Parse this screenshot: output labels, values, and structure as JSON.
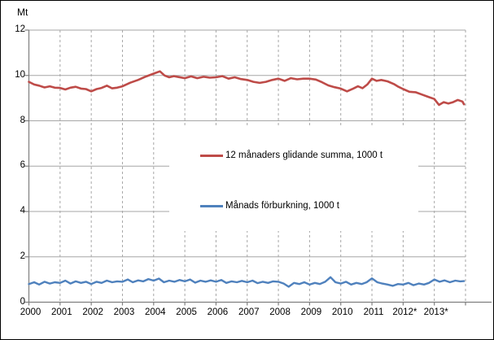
{
  "chart_data": {
    "type": "line",
    "title": "",
    "y_axis": {
      "label": "Mt",
      "min": 0,
      "max": 12,
      "ticks": [
        0,
        2,
        4,
        6,
        8,
        10,
        12
      ]
    },
    "x_axis": {
      "labels": [
        "2000",
        "2001",
        "2002",
        "2003",
        "2004",
        "2005",
        "2006",
        "2007",
        "2008",
        "2009",
        "2010",
        "2011",
        "2012*",
        "2013*"
      ],
      "span_years": 14
    },
    "grid": {
      "horizontal": "solid",
      "vertical": "dashed"
    },
    "legend": {
      "position": "middle-right",
      "background": "#ffffff"
    },
    "series": [
      {
        "name": "12 månaders glidande summa, 1000 t",
        "color": "#BE4B48",
        "width": 2.6,
        "points": [
          [
            0,
            9.72
          ],
          [
            0.17,
            9.6
          ],
          [
            0.33,
            9.55
          ],
          [
            0.5,
            9.47
          ],
          [
            0.67,
            9.52
          ],
          [
            0.83,
            9.46
          ],
          [
            1,
            9.45
          ],
          [
            1.17,
            9.38
          ],
          [
            1.33,
            9.46
          ],
          [
            1.5,
            9.5
          ],
          [
            1.67,
            9.42
          ],
          [
            1.83,
            9.4
          ],
          [
            2,
            9.3
          ],
          [
            2.17,
            9.4
          ],
          [
            2.33,
            9.45
          ],
          [
            2.5,
            9.55
          ],
          [
            2.67,
            9.43
          ],
          [
            2.83,
            9.46
          ],
          [
            3,
            9.52
          ],
          [
            3.25,
            9.68
          ],
          [
            3.5,
            9.8
          ],
          [
            3.75,
            9.95
          ],
          [
            4,
            10.08
          ],
          [
            4.2,
            10.18
          ],
          [
            4.35,
            10.0
          ],
          [
            4.5,
            9.92
          ],
          [
            4.65,
            9.97
          ],
          [
            4.8,
            9.93
          ],
          [
            5,
            9.88
          ],
          [
            5.2,
            9.96
          ],
          [
            5.4,
            9.88
          ],
          [
            5.6,
            9.94
          ],
          [
            5.8,
            9.9
          ],
          [
            6,
            9.92
          ],
          [
            6.2,
            9.97
          ],
          [
            6.4,
            9.86
          ],
          [
            6.6,
            9.92
          ],
          [
            6.8,
            9.84
          ],
          [
            7,
            9.8
          ],
          [
            7.2,
            9.72
          ],
          [
            7.4,
            9.67
          ],
          [
            7.6,
            9.72
          ],
          [
            7.8,
            9.8
          ],
          [
            8,
            9.86
          ],
          [
            8.2,
            9.76
          ],
          [
            8.4,
            9.88
          ],
          [
            8.6,
            9.83
          ],
          [
            8.8,
            9.86
          ],
          [
            9,
            9.86
          ],
          [
            9.2,
            9.82
          ],
          [
            9.4,
            9.7
          ],
          [
            9.6,
            9.56
          ],
          [
            9.8,
            9.48
          ],
          [
            10,
            9.42
          ],
          [
            10.2,
            9.3
          ],
          [
            10.4,
            9.42
          ],
          [
            10.55,
            9.52
          ],
          [
            10.7,
            9.44
          ],
          [
            10.85,
            9.6
          ],
          [
            11,
            9.86
          ],
          [
            11.15,
            9.76
          ],
          [
            11.3,
            9.8
          ],
          [
            11.5,
            9.74
          ],
          [
            11.7,
            9.62
          ],
          [
            11.85,
            9.5
          ],
          [
            12,
            9.4
          ],
          [
            12.2,
            9.28
          ],
          [
            12.4,
            9.26
          ],
          [
            12.6,
            9.16
          ],
          [
            12.8,
            9.06
          ],
          [
            13,
            8.96
          ],
          [
            13.15,
            8.7
          ],
          [
            13.3,
            8.82
          ],
          [
            13.45,
            8.76
          ],
          [
            13.6,
            8.82
          ],
          [
            13.75,
            8.92
          ],
          [
            13.9,
            8.85
          ],
          [
            13.95,
            8.73
          ]
        ]
      },
      {
        "name": "Månads förburkning, 1000 t",
        "color": "#4F81BD",
        "width": 2.4,
        "points": [
          [
            0,
            0.8
          ],
          [
            0.17,
            0.88
          ],
          [
            0.33,
            0.78
          ],
          [
            0.5,
            0.9
          ],
          [
            0.67,
            0.82
          ],
          [
            0.83,
            0.88
          ],
          [
            1,
            0.85
          ],
          [
            1.17,
            0.95
          ],
          [
            1.33,
            0.82
          ],
          [
            1.5,
            0.92
          ],
          [
            1.67,
            0.85
          ],
          [
            1.83,
            0.9
          ],
          [
            2,
            0.8
          ],
          [
            2.17,
            0.9
          ],
          [
            2.33,
            0.85
          ],
          [
            2.5,
            0.95
          ],
          [
            2.67,
            0.88
          ],
          [
            2.83,
            0.92
          ],
          [
            3,
            0.9
          ],
          [
            3.17,
            1.0
          ],
          [
            3.33,
            0.88
          ],
          [
            3.5,
            0.96
          ],
          [
            3.67,
            0.92
          ],
          [
            3.83,
            1.02
          ],
          [
            4,
            0.95
          ],
          [
            4.17,
            1.04
          ],
          [
            4.33,
            0.88
          ],
          [
            4.5,
            0.95
          ],
          [
            4.67,
            0.9
          ],
          [
            4.83,
            0.98
          ],
          [
            5,
            0.92
          ],
          [
            5.17,
            1.0
          ],
          [
            5.33,
            0.86
          ],
          [
            5.5,
            0.95
          ],
          [
            5.67,
            0.9
          ],
          [
            5.83,
            0.96
          ],
          [
            6,
            0.9
          ],
          [
            6.17,
            0.98
          ],
          [
            6.33,
            0.85
          ],
          [
            6.5,
            0.92
          ],
          [
            6.67,
            0.88
          ],
          [
            6.83,
            0.94
          ],
          [
            7,
            0.88
          ],
          [
            7.17,
            0.95
          ],
          [
            7.33,
            0.84
          ],
          [
            7.5,
            0.9
          ],
          [
            7.67,
            0.85
          ],
          [
            7.83,
            0.92
          ],
          [
            8,
            0.9
          ],
          [
            8.17,
            0.82
          ],
          [
            8.33,
            0.68
          ],
          [
            8.5,
            0.85
          ],
          [
            8.67,
            0.8
          ],
          [
            8.83,
            0.88
          ],
          [
            9,
            0.78
          ],
          [
            9.17,
            0.85
          ],
          [
            9.33,
            0.8
          ],
          [
            9.5,
            0.9
          ],
          [
            9.67,
            1.1
          ],
          [
            9.83,
            0.88
          ],
          [
            10,
            0.82
          ],
          [
            10.17,
            0.9
          ],
          [
            10.33,
            0.78
          ],
          [
            10.5,
            0.85
          ],
          [
            10.67,
            0.8
          ],
          [
            10.83,
            0.88
          ],
          [
            11,
            1.05
          ],
          [
            11.17,
            0.88
          ],
          [
            11.33,
            0.82
          ],
          [
            11.5,
            0.78
          ],
          [
            11.67,
            0.72
          ],
          [
            11.83,
            0.8
          ],
          [
            12,
            0.78
          ],
          [
            12.17,
            0.85
          ],
          [
            12.33,
            0.75
          ],
          [
            12.5,
            0.82
          ],
          [
            12.67,
            0.78
          ],
          [
            12.83,
            0.85
          ],
          [
            13,
            1.0
          ],
          [
            13.17,
            0.9
          ],
          [
            13.33,
            0.96
          ],
          [
            13.5,
            0.88
          ],
          [
            13.67,
            0.95
          ],
          [
            13.83,
            0.92
          ],
          [
            13.95,
            0.93
          ]
        ]
      }
    ],
    "colors": {
      "grid": "#A6A6A6",
      "axis": "#7F7F7F",
      "text": "#000000",
      "background": "#FFFFFF"
    }
  }
}
